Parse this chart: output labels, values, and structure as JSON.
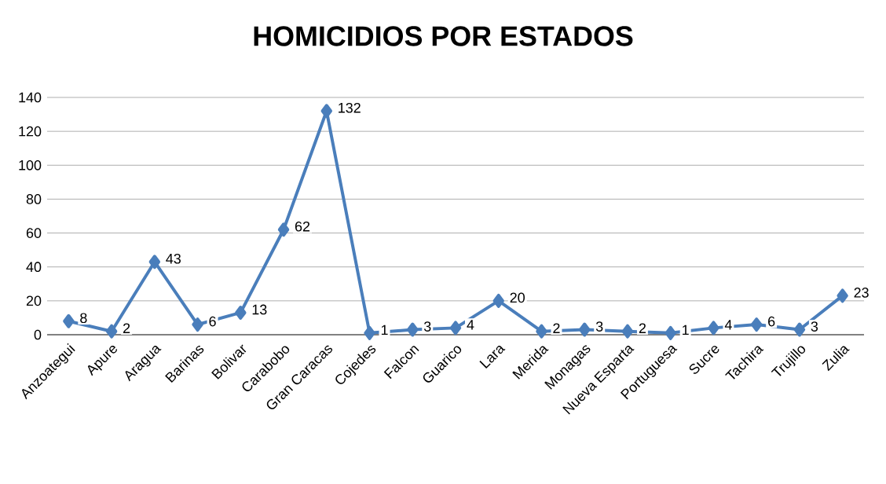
{
  "chart_data": {
    "type": "line",
    "title": "HOMICIDIOS POR ESTADOS",
    "categories": [
      "Anzoategui",
      "Apure",
      "Aragua",
      "Barinas",
      "Bolivar",
      "Carabobo",
      "Gran Caracas",
      "Cojedes",
      "Falcon",
      "Guarico",
      "Lara",
      "Merida",
      "Monagas",
      "Nueva Esparta",
      "Portuguesa",
      "Sucre",
      "Tachira",
      "Trujillo",
      "Zulia"
    ],
    "values": [
      8,
      2,
      43,
      6,
      13,
      62,
      132,
      1,
      3,
      4,
      20,
      2,
      3,
      2,
      1,
      4,
      6,
      3,
      23
    ],
    "color": "#4a7ebb",
    "ylim": [
      0,
      140
    ],
    "yticks": [
      0,
      20,
      40,
      60,
      80,
      100,
      120,
      140
    ],
    "grid": "y",
    "marker": "diamond",
    "data_labels": true
  }
}
